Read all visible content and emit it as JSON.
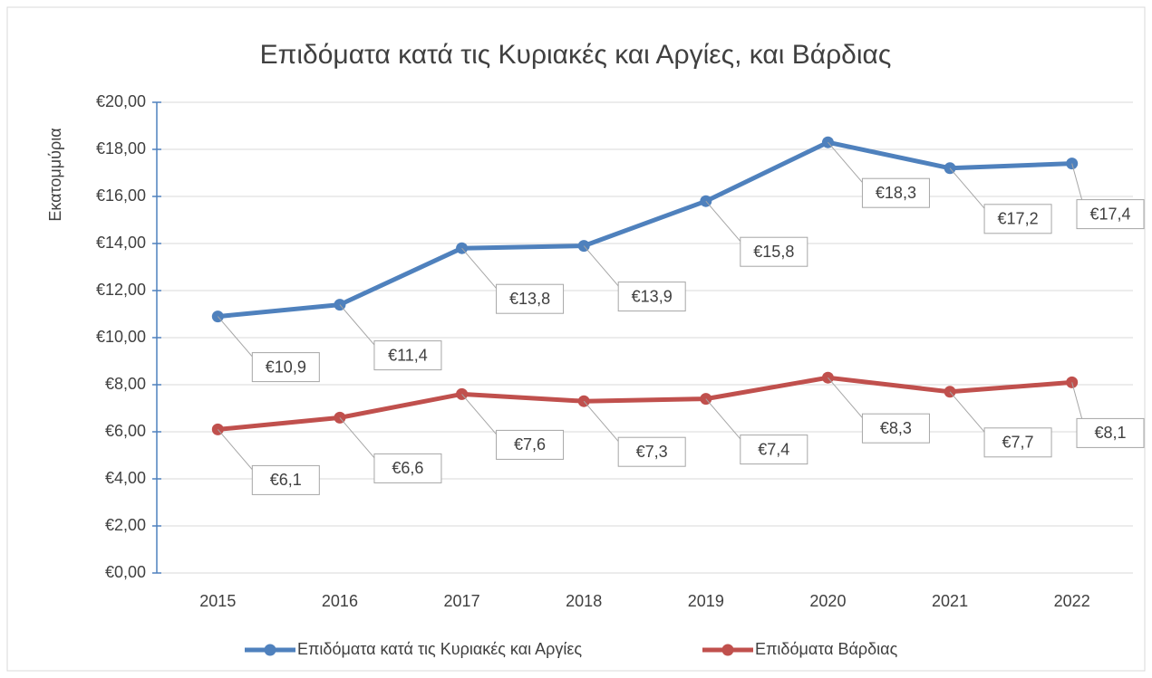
{
  "chart_data": {
    "type": "line",
    "title": "Επιδόματα κατά τις Κυριακές και Αργίες, και Βάρδιας",
    "y_label": "Εκατομμύρια",
    "categories": [
      "2015",
      "2016",
      "2017",
      "2018",
      "2019",
      "2020",
      "2021",
      "2022"
    ],
    "series": [
      {
        "name": "Επιδόματα κατά τις Κυριακές και Αργίες",
        "color": "#4f81bd",
        "values": [
          10.9,
          11.4,
          13.8,
          13.9,
          15.8,
          18.3,
          17.2,
          17.4
        ],
        "value_labels": [
          "€10,9",
          "€11,4",
          "€13,8",
          "€13,9",
          "€15,8",
          "€18,3",
          "€17,2",
          "€17,4"
        ]
      },
      {
        "name": "Επιδόματα Βάρδιας",
        "color": "#c0504d",
        "values": [
          6.1,
          6.6,
          7.6,
          7.3,
          7.4,
          8.3,
          7.7,
          8.1
        ],
        "value_labels": [
          "€6,1",
          "€6,6",
          "€7,6",
          "€7,3",
          "€7,4",
          "€8,3",
          "€7,7",
          "€8,1"
        ]
      }
    ],
    "ylim": [
      0,
      20
    ],
    "yticks": [
      {
        "value": 0,
        "label": "€0,00"
      },
      {
        "value": 2,
        "label": "€2,00"
      },
      {
        "value": 4,
        "label": "€4,00"
      },
      {
        "value": 6,
        "label": "€6,00"
      },
      {
        "value": 8,
        "label": "€8,00"
      },
      {
        "value": 10,
        "label": "€10,00"
      },
      {
        "value": 12,
        "label": "€12,00"
      },
      {
        "value": 14,
        "label": "€14,00"
      },
      {
        "value": 16,
        "label": "€16,00"
      },
      {
        "value": 18,
        "label": "€18,00"
      },
      {
        "value": 20,
        "label": "€20,00"
      }
    ],
    "grid": true,
    "legend": "bottom"
  }
}
